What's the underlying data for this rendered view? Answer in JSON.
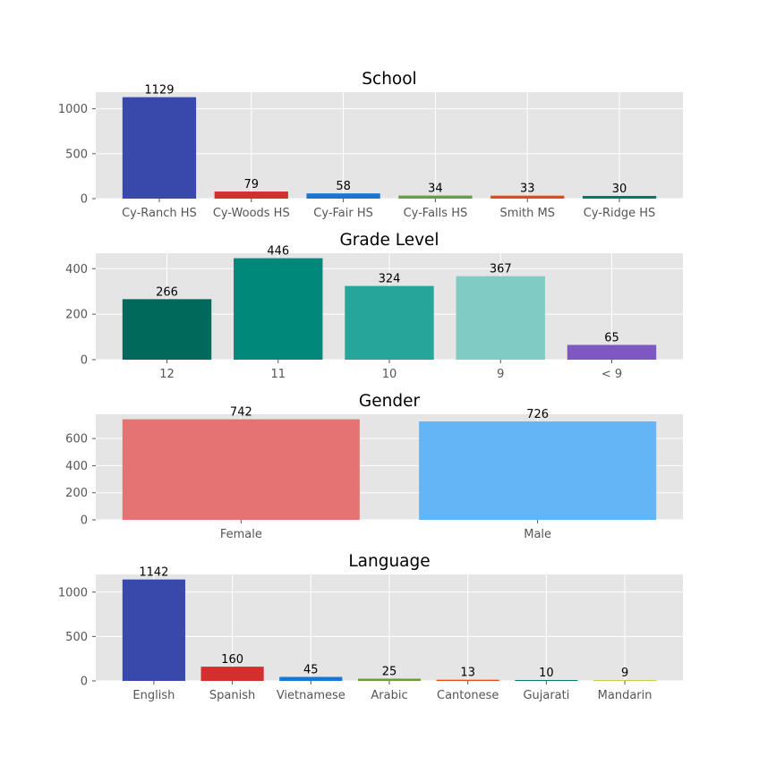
{
  "chart_data": [
    {
      "type": "bar",
      "title": "School",
      "categories": [
        "Cy-Ranch HS",
        "Cy-Woods HS",
        "Cy-Fair HS",
        "Cy-Falls HS",
        "Smith MS",
        "Cy-Ridge HS"
      ],
      "values": [
        1129,
        79,
        58,
        34,
        33,
        30
      ],
      "colors": [
        "#3949ab",
        "#d32f2f",
        "#1976d2",
        "#689f38",
        "#e64a19",
        "#00796b"
      ],
      "yticks": [
        0,
        500,
        1000
      ],
      "ylim": [
        0,
        1185
      ],
      "xlabel": "",
      "ylabel": "",
      "grid": true
    },
    {
      "type": "bar",
      "title": "Grade Level",
      "categories": [
        "12",
        "11",
        "10",
        "9",
        "< 9"
      ],
      "values": [
        266,
        446,
        324,
        367,
        65
      ],
      "colors": [
        "#00695c",
        "#00897b",
        "#26a69a",
        "#80cbc4",
        "#7e57c2"
      ],
      "yticks": [
        0,
        200,
        400
      ],
      "ylim": [
        0,
        468
      ],
      "xlabel": "",
      "ylabel": "",
      "grid": true
    },
    {
      "type": "bar",
      "title": "Gender",
      "categories": [
        "Female",
        "Male"
      ],
      "values": [
        742,
        726
      ],
      "colors": [
        "#e57373",
        "#64b5f6"
      ],
      "yticks": [
        0,
        200,
        400,
        600
      ],
      "ylim": [
        0,
        779
      ],
      "xlabel": "",
      "ylabel": "",
      "grid": true
    },
    {
      "type": "bar",
      "title": "Language",
      "categories": [
        "English",
        "Spanish",
        "Vietnamese",
        "Arabic",
        "Cantonese",
        "Gujarati",
        "Mandarin"
      ],
      "values": [
        1142,
        160,
        45,
        25,
        13,
        10,
        9
      ],
      "colors": [
        "#3949ab",
        "#d32f2f",
        "#1976d2",
        "#689f38",
        "#e64a19",
        "#00796b",
        "#c0ca33"
      ],
      "yticks": [
        0,
        500,
        1000
      ],
      "ylim": [
        0,
        1199
      ],
      "xlabel": "",
      "ylabel": "",
      "grid": true
    }
  ]
}
